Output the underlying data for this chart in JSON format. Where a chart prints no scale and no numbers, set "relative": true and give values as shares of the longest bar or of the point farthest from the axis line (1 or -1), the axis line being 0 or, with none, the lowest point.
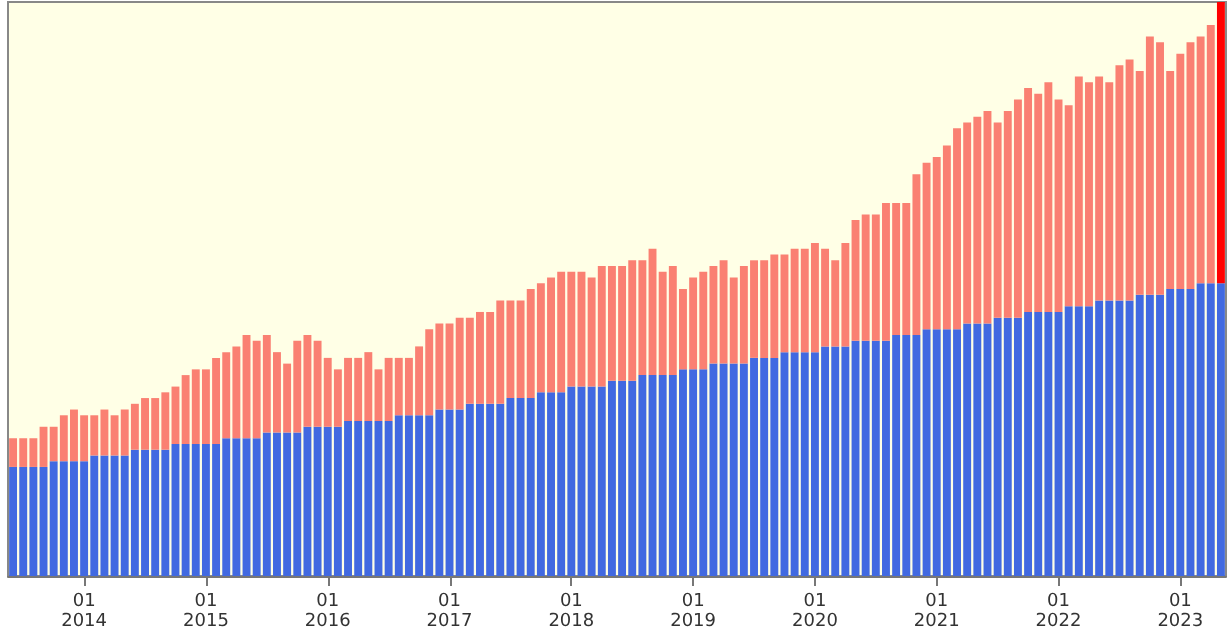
{
  "chart_data": {
    "type": "bar",
    "relative": true,
    "stacked": true,
    "categories": [
      null,
      null,
      null,
      null,
      null,
      null,
      null,
      "01\n2014",
      null,
      null,
      null,
      null,
      null,
      null,
      null,
      null,
      null,
      null,
      null,
      "01\n2015",
      null,
      null,
      null,
      null,
      null,
      null,
      null,
      null,
      null,
      null,
      null,
      "01\n2016",
      null,
      null,
      null,
      null,
      null,
      null,
      null,
      null,
      null,
      null,
      null,
      "01\n2017",
      null,
      null,
      null,
      null,
      null,
      null,
      null,
      null,
      null,
      null,
      null,
      "01\n2018",
      null,
      null,
      null,
      null,
      null,
      null,
      null,
      null,
      null,
      null,
      null,
      "01\n2019",
      null,
      null,
      null,
      null,
      null,
      null,
      null,
      null,
      null,
      null,
      null,
      "01\n2020",
      null,
      null,
      null,
      null,
      null,
      null,
      null,
      null,
      null,
      null,
      null,
      "01\n2021",
      null,
      null,
      null,
      null,
      null,
      null,
      null,
      null,
      null,
      null,
      null,
      "01\n2022",
      null,
      null,
      null,
      null,
      null,
      null,
      null,
      null,
      null,
      null,
      null,
      "01\n2023",
      null,
      null,
      null,
      null
    ],
    "series": [
      {
        "color": "#4169e1",
        "values": [
          0.19,
          0.19,
          0.19,
          0.19,
          0.2,
          0.2,
          0.2,
          0.2,
          0.21,
          0.21,
          0.21,
          0.21,
          0.22,
          0.22,
          0.22,
          0.22,
          0.23,
          0.23,
          0.23,
          0.23,
          0.23,
          0.24,
          0.24,
          0.24,
          0.24,
          0.25,
          0.25,
          0.25,
          0.25,
          0.26,
          0.26,
          0.26,
          0.26,
          0.27,
          0.27,
          0.27,
          0.27,
          0.27,
          0.28,
          0.28,
          0.28,
          0.28,
          0.29,
          0.29,
          0.29,
          0.3,
          0.3,
          0.3,
          0.3,
          0.31,
          0.31,
          0.31,
          0.32,
          0.32,
          0.32,
          0.33,
          0.33,
          0.33,
          0.33,
          0.34,
          0.34,
          0.34,
          0.35,
          0.35,
          0.35,
          0.35,
          0.36,
          0.36,
          0.36,
          0.37,
          0.37,
          0.37,
          0.37,
          0.38,
          0.38,
          0.38,
          0.39,
          0.39,
          0.39,
          0.39,
          0.4,
          0.4,
          0.4,
          0.41,
          0.41,
          0.41,
          0.41,
          0.42,
          0.42,
          0.42,
          0.43,
          0.43,
          0.43,
          0.43,
          0.44,
          0.44,
          0.44,
          0.45,
          0.45,
          0.45,
          0.46,
          0.46,
          0.46,
          0.46,
          0.47,
          0.47,
          0.47,
          0.48,
          0.48,
          0.48,
          0.48,
          0.49,
          0.49,
          0.49,
          0.5,
          0.5,
          0.5,
          0.51,
          0.51,
          0.51
        ]
      },
      {
        "color": "#fa8072",
        "colors": [
          "#fa8072",
          "#fa8072",
          "#fa8072",
          "#fa8072",
          "#fa8072",
          "#fa8072",
          "#fa8072",
          "#fa8072",
          "#fa8072",
          "#fa8072",
          "#fa8072",
          "#fa8072",
          "#fa8072",
          "#fa8072",
          "#fa8072",
          "#fa8072",
          "#fa8072",
          "#fa8072",
          "#fa8072",
          "#fa8072",
          "#fa8072",
          "#fa8072",
          "#fa8072",
          "#fa8072",
          "#fa8072",
          "#fa8072",
          "#fa8072",
          "#fa8072",
          "#fa8072",
          "#fa8072",
          "#fa8072",
          "#fa8072",
          "#fa8072",
          "#fa8072",
          "#fa8072",
          "#fa8072",
          "#fa8072",
          "#fa8072",
          "#fa8072",
          "#fa8072",
          "#fa8072",
          "#fa8072",
          "#fa8072",
          "#fa8072",
          "#fa8072",
          "#fa8072",
          "#fa8072",
          "#fa8072",
          "#fa8072",
          "#fa8072",
          "#fa8072",
          "#fa8072",
          "#fa8072",
          "#fa8072",
          "#fa8072",
          "#fa8072",
          "#fa8072",
          "#fa8072",
          "#fa8072",
          "#fa8072",
          "#fa8072",
          "#fa8072",
          "#fa8072",
          "#fa8072",
          "#fa8072",
          "#fa8072",
          "#fa8072",
          "#fa8072",
          "#fa8072",
          "#fa8072",
          "#fa8072",
          "#fa8072",
          "#fa8072",
          "#fa8072",
          "#fa8072",
          "#fa8072",
          "#fa8072",
          "#fa8072",
          "#fa8072",
          "#fa8072",
          "#fa8072",
          "#fa8072",
          "#fa8072",
          "#fa8072",
          "#fa8072",
          "#fa8072",
          "#fa8072",
          "#fa8072",
          "#fa8072",
          "#fa8072",
          "#fa8072",
          "#fa8072",
          "#fa8072",
          "#fa8072",
          "#fa8072",
          "#fa8072",
          "#fa8072",
          "#fa8072",
          "#fa8072",
          "#fa8072",
          "#fa8072",
          "#fa8072",
          "#fa8072",
          "#fa8072",
          "#fa8072",
          "#fa8072",
          "#fa8072",
          "#fa8072",
          "#fa8072",
          "#fa8072",
          "#fa8072",
          "#fa8072",
          "#fa8072",
          "#fa8072",
          "#fa8072",
          "#fa8072",
          "#fa8072",
          "#fa8072",
          "#fa8072",
          "#ff0000"
        ],
        "values": [
          0.05,
          0.05,
          0.05,
          0.07,
          0.06,
          0.08,
          0.09,
          0.08,
          0.07,
          0.08,
          0.07,
          0.08,
          0.08,
          0.09,
          0.09,
          0.1,
          0.1,
          0.12,
          0.13,
          0.13,
          0.15,
          0.15,
          0.16,
          0.18,
          0.17,
          0.17,
          0.14,
          0.12,
          0.16,
          0.16,
          0.15,
          0.12,
          0.1,
          0.11,
          0.11,
          0.12,
          0.09,
          0.11,
          0.1,
          0.1,
          0.12,
          0.15,
          0.15,
          0.15,
          0.16,
          0.15,
          0.16,
          0.16,
          0.18,
          0.17,
          0.17,
          0.19,
          0.19,
          0.2,
          0.21,
          0.2,
          0.2,
          0.19,
          0.21,
          0.2,
          0.2,
          0.21,
          0.2,
          0.22,
          0.18,
          0.19,
          0.14,
          0.16,
          0.17,
          0.17,
          0.18,
          0.15,
          0.17,
          0.17,
          0.17,
          0.18,
          0.17,
          0.18,
          0.18,
          0.19,
          0.17,
          0.15,
          0.18,
          0.21,
          0.22,
          0.22,
          0.24,
          0.23,
          0.23,
          0.28,
          0.29,
          0.3,
          0.32,
          0.35,
          0.35,
          0.36,
          0.37,
          0.34,
          0.36,
          0.38,
          0.39,
          0.38,
          0.4,
          0.37,
          0.35,
          0.4,
          0.39,
          0.39,
          0.38,
          0.41,
          0.42,
          0.39,
          0.45,
          0.44,
          0.38,
          0.41,
          0.43,
          0.43,
          0.45,
          0.49
        ]
      }
    ]
  }
}
